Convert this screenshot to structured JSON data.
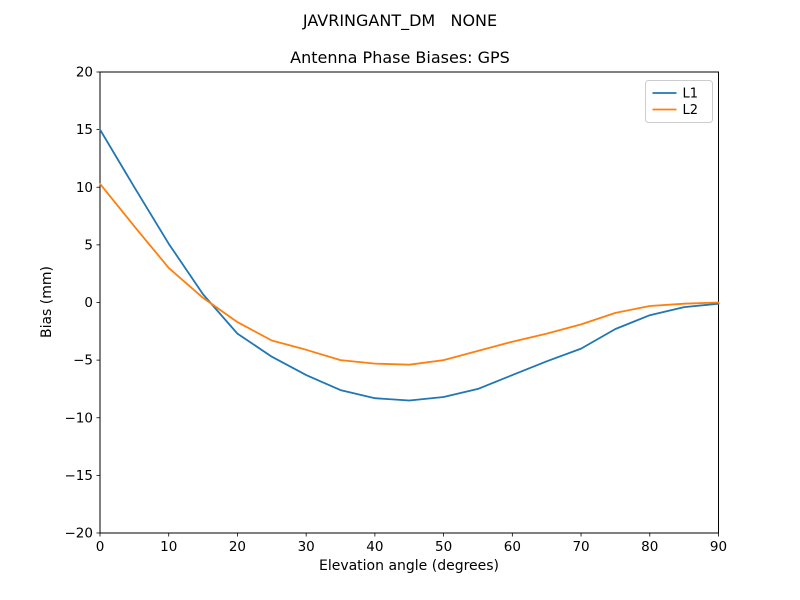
{
  "chart_data": {
    "type": "line",
    "suptitle": "JAVRINGANT_DM   NONE",
    "title": "Antenna Phase Biases: GPS",
    "xlabel": "Elevation angle (degrees)",
    "ylabel": "Bias (mm)",
    "xlim": [
      0,
      90
    ],
    "ylim": [
      -20,
      20
    ],
    "xticks": [
      0,
      10,
      20,
      30,
      40,
      50,
      60,
      70,
      80,
      90
    ],
    "yticks": [
      -20,
      -15,
      -10,
      -5,
      0,
      5,
      10,
      15,
      20
    ],
    "grid": false,
    "legend_position": "upper right",
    "x": [
      0,
      5,
      10,
      15,
      20,
      25,
      30,
      35,
      40,
      45,
      50,
      55,
      60,
      65,
      70,
      75,
      80,
      85,
      90
    ],
    "series": [
      {
        "name": "L1",
        "color": "#1f77b4",
        "values": [
          15.0,
          10.0,
          5.1,
          0.7,
          -2.7,
          -4.7,
          -6.3,
          -7.6,
          -8.3,
          -8.5,
          -8.2,
          -7.5,
          -6.3,
          -5.1,
          -4.0,
          -2.3,
          -1.1,
          -0.4,
          -0.1
        ]
      },
      {
        "name": "L2",
        "color": "#ff7f0e",
        "values": [
          10.3,
          6.6,
          3.0,
          0.4,
          -1.7,
          -3.3,
          -4.1,
          -5.0,
          -5.3,
          -5.4,
          -5.0,
          -4.2,
          -3.4,
          -2.7,
          -1.9,
          -0.9,
          -0.3,
          -0.1,
          0.0
        ]
      }
    ],
    "colors": {
      "axes": "#000000",
      "background": "#ffffff",
      "legend_border": "#cccccc"
    }
  }
}
